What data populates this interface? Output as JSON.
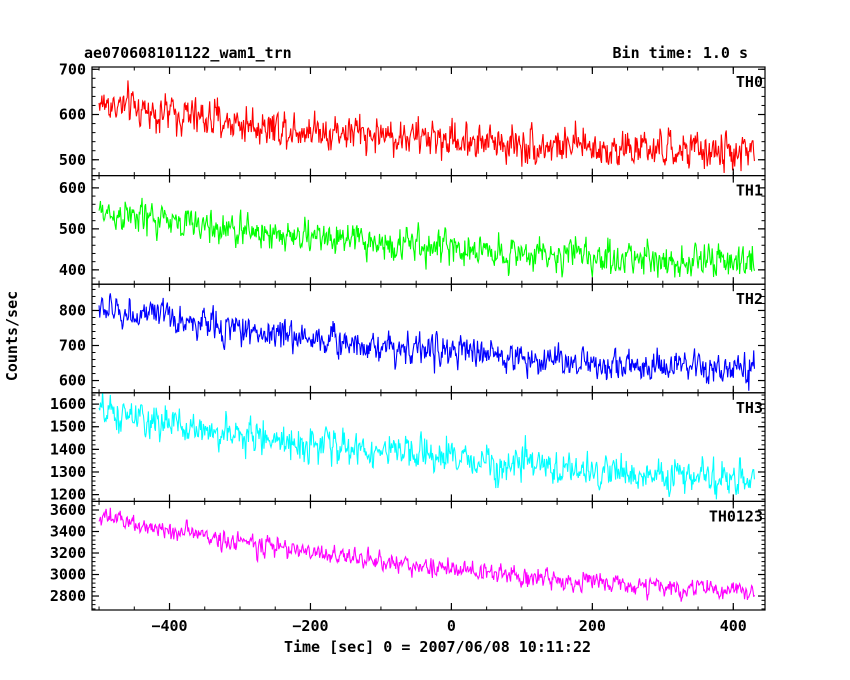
{
  "chart_data": {
    "type": "line",
    "title": "ae070608101122_wam1_trn",
    "subtitle": "Bin time: 1.0 s",
    "xlabel": "Time [sec] 0 = 2007/06/08 10:11:22",
    "ylabel": "Counts/sec",
    "xlim": [
      -510,
      445
    ],
    "x_ticks": [
      -400,
      -200,
      0,
      200,
      400
    ],
    "x_tick_labels": [
      "−400",
      "−200",
      "0",
      "200",
      "400"
    ],
    "x_range": [
      -500,
      430
    ],
    "grid": false,
    "panels": [
      {
        "name": "TH0",
        "color": "#ff0000",
        "ylim": [
          465,
          705
        ],
        "y_ticks": [
          500,
          600,
          700
        ],
        "trend": [
          [
            -500,
            625
          ],
          [
            -300,
            580
          ],
          [
            -100,
            555
          ],
          [
            100,
            535
          ],
          [
            300,
            520
          ],
          [
            430,
            515
          ]
        ],
        "noise": 28
      },
      {
        "name": "TH1",
        "color": "#00ff00",
        "ylim": [
          365,
          630
        ],
        "y_ticks": [
          400,
          500,
          600
        ],
        "trend": [
          [
            -500,
            540
          ],
          [
            -300,
            495
          ],
          [
            -100,
            465
          ],
          [
            100,
            440
          ],
          [
            300,
            425
          ],
          [
            430,
            415
          ]
        ],
        "noise": 27
      },
      {
        "name": "TH2",
        "color": "#0000ff",
        "ylim": [
          565,
          875
        ],
        "y_ticks": [
          600,
          700,
          800
        ],
        "trend": [
          [
            -500,
            805
          ],
          [
            -300,
            745
          ],
          [
            -100,
            700
          ],
          [
            100,
            665
          ],
          [
            300,
            635
          ],
          [
            430,
            625
          ]
        ],
        "noise": 30
      },
      {
        "name": "TH3",
        "color": "#00ffff",
        "ylim": [
          1170,
          1650
        ],
        "y_ticks": [
          1200,
          1300,
          1400,
          1500,
          1600
        ],
        "trend": [
          [
            -500,
            1560
          ],
          [
            -300,
            1460
          ],
          [
            -100,
            1390
          ],
          [
            100,
            1330
          ],
          [
            300,
            1280
          ],
          [
            430,
            1270
          ]
        ],
        "noise": 50
      },
      {
        "name": "TH0123",
        "color": "#ff00ff",
        "ylim": [
          2670,
          3680
        ],
        "y_ticks": [
          2800,
          3000,
          3200,
          3400,
          3600
        ],
        "trend": [
          [
            -500,
            3530
          ],
          [
            -300,
            3300
          ],
          [
            -100,
            3120
          ],
          [
            100,
            2980
          ],
          [
            300,
            2880
          ],
          [
            430,
            2840
          ]
        ],
        "noise": 60
      }
    ]
  }
}
